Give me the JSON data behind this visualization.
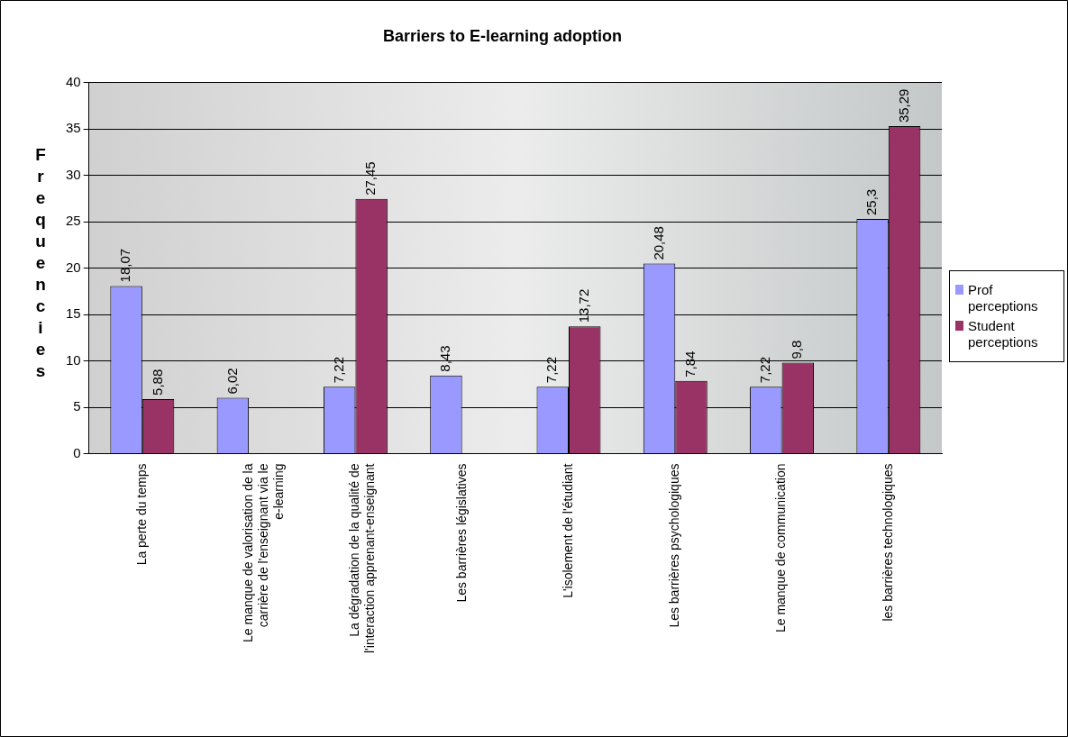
{
  "chart_data": {
    "type": "bar",
    "title": "Barriers to E-learning adoption",
    "ylabel": "Frequencies",
    "categories": [
      "La perte du temps",
      "Le manque de valorisation de la carrière de l'enseignant via le e-learning",
      "La dégradation de la qualité de l'interaction apprenant-enseignant",
      "Les barrières législatives",
      "L'isolement de l'étudiant",
      "Les barrières psychologiques",
      "Le manque de communication",
      "les barrières technologiques"
    ],
    "series": [
      {
        "name": "Prof perceptions",
        "color": "#9999ff",
        "values": [
          18.07,
          6.02,
          7.22,
          8.43,
          7.22,
          20.48,
          7.22,
          25.3
        ],
        "value_labels": [
          "18,07",
          "6,02",
          "7,22",
          "8,43",
          "7,22",
          "20,48",
          "7,22",
          "25,3"
        ]
      },
      {
        "name": "Student perceptions",
        "color": "#993366",
        "values": [
          5.88,
          null,
          27.45,
          null,
          13.72,
          7.84,
          9.8,
          35.29
        ],
        "value_labels": [
          "5,88",
          null,
          "27,45",
          null,
          "13,72",
          "7,84",
          "9,8",
          "35,29"
        ]
      }
    ],
    "ylim": [
      0,
      40
    ],
    "yticks": [
      0,
      5,
      10,
      15,
      20,
      25,
      30,
      35,
      40
    ],
    "grid": "y",
    "legend": "right"
  }
}
